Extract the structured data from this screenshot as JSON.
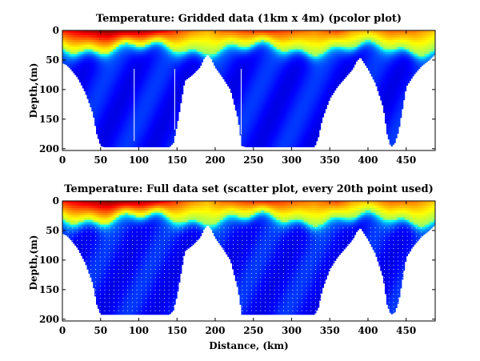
{
  "chart_data": [
    {
      "type": "heatmap",
      "title": "Temperature: Gridded data (1km x 4m) (pcolor plot)",
      "xlabel": "",
      "ylabel": "Depth,(m)",
      "xlim": [
        0,
        488
      ],
      "ylim": [
        203,
        0
      ],
      "xticks": [
        0,
        50,
        100,
        150,
        200,
        250,
        300,
        350,
        400,
        450
      ],
      "yticks": [
        0,
        50,
        100,
        150,
        200
      ],
      "style": "gridded",
      "bottom_profile": {
        "distance_km": [
          0,
          5,
          10,
          20,
          30,
          40,
          45,
          50,
          55,
          100,
          140,
          145,
          150,
          160,
          170,
          180,
          185,
          190,
          195,
          200,
          210,
          220,
          230,
          235,
          240,
          320,
          330,
          335,
          340,
          350,
          360,
          370,
          380,
          385,
          390,
          400,
          410,
          420,
          425,
          430,
          435,
          440,
          450,
          460,
          470,
          480,
          488
        ],
        "depth_m": [
          55,
          58,
          64,
          80,
          105,
          140,
          175,
          195,
          197,
          197,
          197,
          190,
          160,
          85,
          75,
          62,
          48,
          40,
          48,
          62,
          80,
          100,
          150,
          195,
          197,
          197,
          197,
          180,
          150,
          115,
          95,
          80,
          65,
          52,
          45,
          65,
          90,
          130,
          175,
          197,
          190,
          170,
          95,
          75,
          60,
          50,
          40
        ]
      },
      "surface_temp_by_distance": {
        "distance_km": [
          0,
          30,
          60,
          90,
          120,
          150,
          170,
          190,
          210,
          240,
          270,
          300,
          330,
          360,
          380,
          400,
          430,
          460,
          488
        ],
        "temp_index": [
          0.85,
          0.95,
          1.0,
          0.98,
          0.95,
          0.82,
          0.75,
          0.7,
          0.78,
          0.82,
          0.85,
          0.8,
          0.75,
          0.82,
          0.72,
          0.7,
          0.78,
          0.76,
          0.68
        ]
      }
    },
    {
      "type": "scatter",
      "title": "Temperature: Full data set (scatter plot, every 20th point used)",
      "xlabel": "Distance, (km)",
      "ylabel": "Depth,(m)",
      "xlim": [
        0,
        488
      ],
      "ylim": [
        203,
        0
      ],
      "xticks": [
        0,
        50,
        100,
        150,
        200,
        250,
        300,
        350,
        400,
        450
      ],
      "yticks": [
        0,
        50,
        100,
        150,
        200
      ],
      "style": "scatter",
      "bottom_profile": {
        "distance_km": [
          0,
          5,
          10,
          20,
          30,
          40,
          45,
          50,
          55,
          100,
          140,
          145,
          150,
          160,
          170,
          180,
          185,
          190,
          195,
          200,
          210,
          220,
          230,
          235,
          240,
          320,
          330,
          335,
          340,
          350,
          360,
          370,
          380,
          385,
          390,
          400,
          410,
          420,
          425,
          430,
          435,
          440,
          450,
          460,
          470,
          480,
          488
        ],
        "depth_m": [
          55,
          58,
          64,
          80,
          105,
          140,
          175,
          192,
          192,
          192,
          192,
          185,
          160,
          85,
          75,
          62,
          48,
          40,
          48,
          62,
          80,
          100,
          150,
          192,
          192,
          192,
          192,
          180,
          150,
          115,
          95,
          80,
          65,
          52,
          45,
          65,
          90,
          130,
          175,
          192,
          188,
          170,
          95,
          75,
          60,
          50,
          40
        ]
      },
      "surface_temp_by_distance": {
        "distance_km": [
          0,
          30,
          60,
          90,
          120,
          150,
          170,
          190,
          210,
          240,
          270,
          300,
          330,
          360,
          380,
          400,
          430,
          460,
          488
        ],
        "temp_index": [
          0.85,
          0.95,
          1.0,
          0.98,
          0.95,
          0.82,
          0.75,
          0.7,
          0.78,
          0.82,
          0.85,
          0.8,
          0.75,
          0.82,
          0.72,
          0.7,
          0.78,
          0.76,
          0.68
        ]
      }
    }
  ]
}
